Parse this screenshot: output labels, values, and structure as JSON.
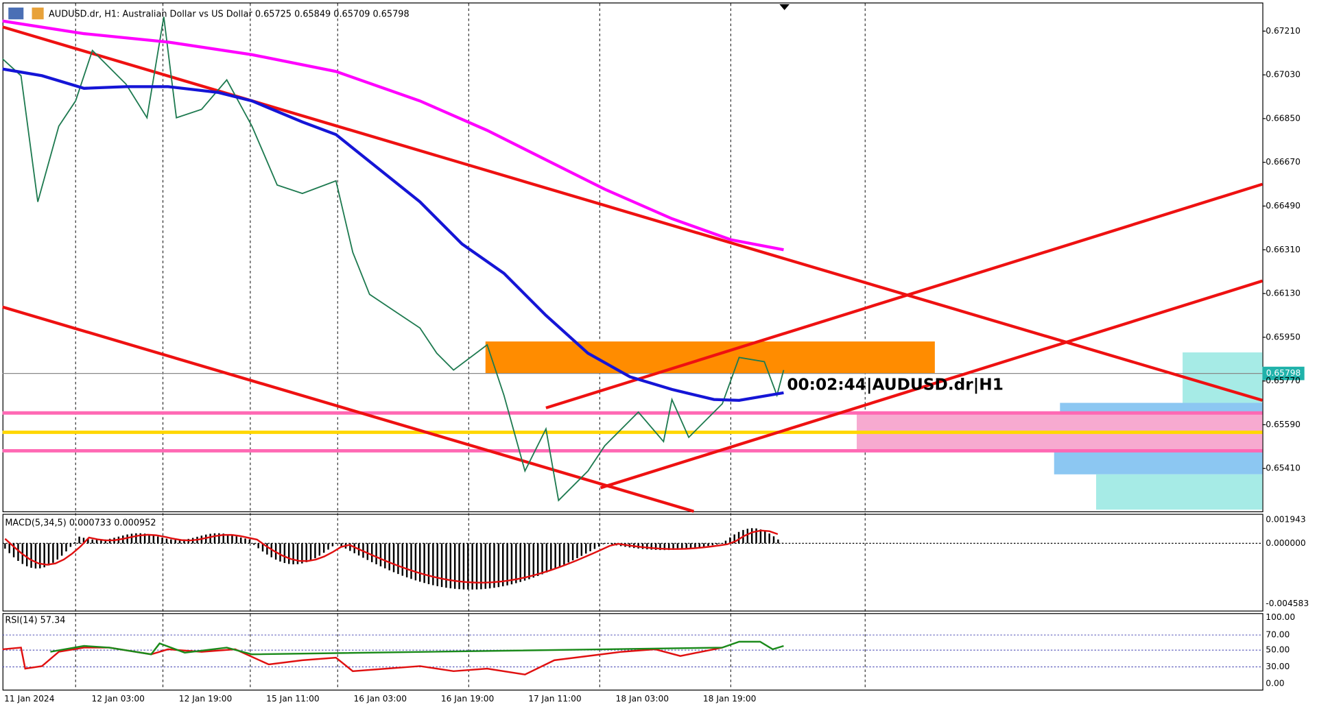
{
  "header": {
    "title": "AUDUSD.dr, H1:  Australian Dollar vs US Dollar  0.65725 0.65849 0.65709 0.65798"
  },
  "price_axis": [
    "0.67210",
    "0.67030",
    "0.66850",
    "0.66670",
    "0.66490",
    "0.66310",
    "0.66130",
    "0.65950",
    "0.65770",
    "0.65590",
    "0.65410"
  ],
  "current_price": "0.65798",
  "timer": "00:02:44|AUDUSD.dr|H1",
  "macd": {
    "label": "MACD(5,34,5) 0.000733 0.000952",
    "axis": [
      "0.001943",
      "0.000000",
      "-0.004583"
    ]
  },
  "rsi": {
    "label": "RSI(14) 57.34",
    "axis": [
      "100.00",
      "70.00",
      "50.00",
      "30.00",
      "0.00"
    ]
  },
  "time_axis": [
    "11 Jan 2024",
    "12 Jan 03:00",
    "12 Jan 19:00",
    "15 Jan 11:00",
    "16 Jan 03:00",
    "16 Jan 19:00",
    "17 Jan 11:00",
    "18 Jan 03:00",
    "18 Jan 19:00"
  ]
}
